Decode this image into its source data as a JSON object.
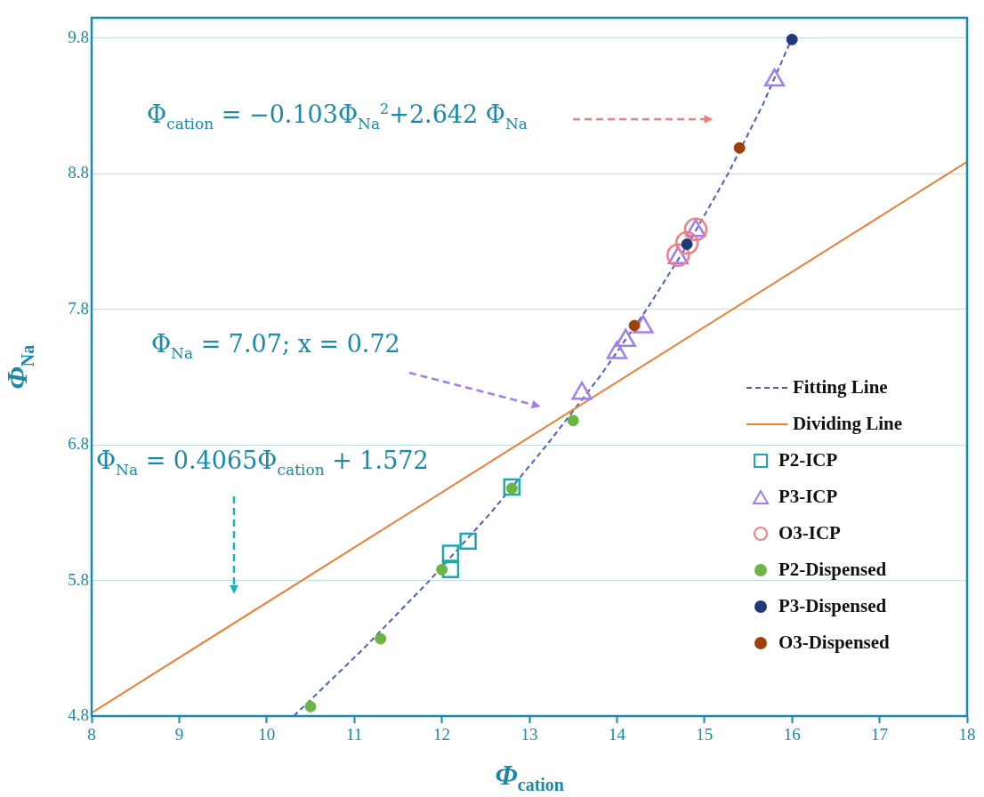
{
  "chart_data": {
    "type": "scatter",
    "xlabel": "Φ$_{cation}$",
    "ylabel": "Φ$_{Na}$",
    "xlim": [
      8,
      18
    ],
    "xticks": [
      8,
      9,
      10,
      11,
      12,
      13,
      14,
      15,
      16,
      17,
      18
    ],
    "ylim": [
      4.8,
      9.95
    ],
    "yticks": [
      4.8,
      5.8,
      6.8,
      7.8,
      8.8,
      9.8
    ],
    "grid": "y",
    "legend": "right",
    "annotations": [
      "Φ$_{cation}$ = −0.103Φ$_{Na}$$^{2}$+2.642 Φ$_{Na}$",
      "Φ$_{Na}$ = 7.07; x = 0.72",
      "Φ$_{Na}$ = 0.4065Φ$_{cation}$ + 1.572"
    ],
    "series": [
      {
        "name": "Fitting Line",
        "type": "line",
        "color": "#4a5fc1",
        "line_style": "dashed",
        "marker": "none",
        "x": [
          10.31,
          11.11,
          11.86,
          12.56,
          13.2,
          13.8,
          14.34,
          14.83,
          15.27,
          15.66,
          16.0
        ],
        "values": [
          4.8,
          5.3,
          5.8,
          6.3,
          6.8,
          7.3,
          7.8,
          8.3,
          8.8,
          9.3,
          9.8
        ]
      },
      {
        "name": "Dividing Line",
        "type": "line",
        "color": "#ee7d31",
        "line_style": "solid",
        "marker": "none",
        "x": [
          8,
          18
        ],
        "values": [
          4.824,
          8.889
        ]
      },
      {
        "name": "P2-ICP",
        "color": "#1aa9b0",
        "marker": "square",
        "x": [
          12.8,
          12.3,
          12.1,
          12.1
        ],
        "values": [
          6.49,
          6.09,
          6.0,
          5.88
        ]
      },
      {
        "name": "P3-ICP",
        "color": "#a07ef0",
        "marker": "triangle",
        "x": [
          13.6,
          14.0,
          14.1,
          14.3,
          14.7,
          14.9,
          15.8
        ],
        "values": [
          7.18,
          7.48,
          7.57,
          7.67,
          8.18,
          8.38,
          9.49
        ]
      },
      {
        "name": "O3-ICP",
        "color": "#f08080",
        "marker": "circle",
        "x": [
          14.7,
          14.8,
          14.9
        ],
        "values": [
          8.2,
          8.29,
          8.39
        ]
      },
      {
        "name": "P2-Dispensed",
        "color": "#6ab545",
        "marker": "circle",
        "x": [
          10.5,
          11.3,
          12.0,
          12.8,
          13.5
        ],
        "values": [
          4.87,
          5.37,
          5.88,
          6.48,
          6.98
        ]
      },
      {
        "name": "P3-Dispensed",
        "color": "#1f3a7a",
        "marker": "circle",
        "x": [
          14.8,
          16.0
        ],
        "values": [
          8.28,
          9.79
        ]
      },
      {
        "name": "O3-Dispensed",
        "color": "#a0410d",
        "marker": "circle",
        "x": [
          14.2,
          15.4
        ],
        "values": [
          7.68,
          8.99
        ]
      }
    ]
  }
}
